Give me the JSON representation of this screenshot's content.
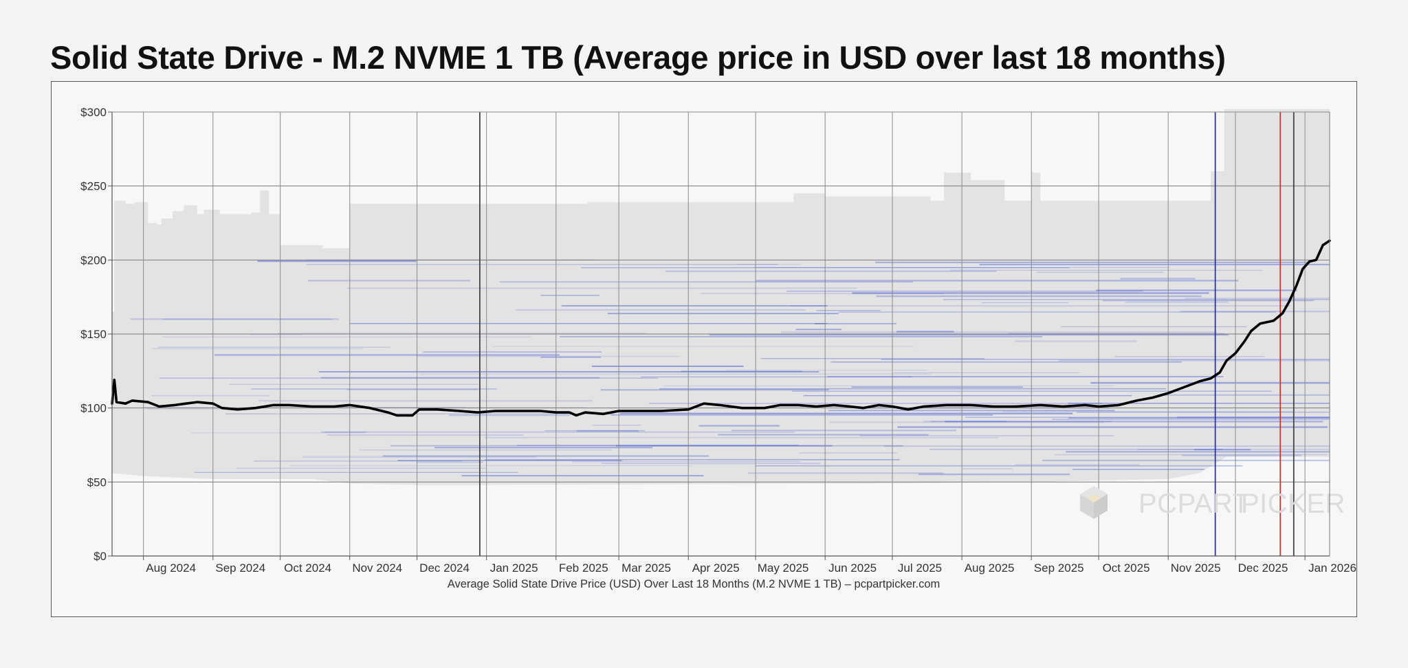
{
  "page": {
    "title": "Solid State Drive - M.2 NVME 1 TB (Average price in USD over last 18 months)"
  },
  "watermark": {
    "text_a": "PCPART",
    "text_b": "PICKER",
    "icon": "pcpartpicker-cube-icon"
  },
  "chart_data": {
    "type": "line",
    "title": "Solid State Drive - M.2 NVME 1 TB (Average price in USD over last 18 months)",
    "caption": "Average Solid State Drive Price (USD) Over Last 18 Months (M.2 NVME 1 TB) – pcpartpicker.com",
    "x_range": [
      "2024-07-18",
      "2026-01-12"
    ],
    "x_ticks": [
      {
        "label": "Aug 2024",
        "date": "2024-08-01"
      },
      {
        "label": "Sep 2024",
        "date": "2024-09-01"
      },
      {
        "label": "Oct 2024",
        "date": "2024-10-01"
      },
      {
        "label": "Nov 2024",
        "date": "2024-11-01"
      },
      {
        "label": "Dec 2024",
        "date": "2024-12-01"
      },
      {
        "label": "Jan 2025",
        "date": "2025-01-01"
      },
      {
        "label": "Feb 2025",
        "date": "2025-02-01"
      },
      {
        "label": "Mar 2025",
        "date": "2025-03-01"
      },
      {
        "label": "Apr 2025",
        "date": "2025-04-01"
      },
      {
        "label": "May 2025",
        "date": "2025-05-01"
      },
      {
        "label": "Jun 2025",
        "date": "2025-06-01"
      },
      {
        "label": "Jul 2025",
        "date": "2025-07-01"
      },
      {
        "label": "Aug 2025",
        "date": "2025-08-01"
      },
      {
        "label": "Sep 2025",
        "date": "2025-09-01"
      },
      {
        "label": "Oct 2025",
        "date": "2025-10-01"
      },
      {
        "label": "Nov 2025",
        "date": "2025-11-01"
      },
      {
        "label": "Dec 2025",
        "date": "2025-12-01"
      },
      {
        "label": "Jan 2026",
        "date": "2026-01-01"
      }
    ],
    "ylim": [
      0,
      300
    ],
    "y_ticks": [
      {
        "label": "$0",
        "value": 0
      },
      {
        "label": "$50",
        "value": 50
      },
      {
        "label": "$100",
        "value": 100
      },
      {
        "label": "$150",
        "value": 150
      },
      {
        "label": "$200",
        "value": 200
      },
      {
        "label": "$250",
        "value": 250
      },
      {
        "label": "$300",
        "value": 300
      }
    ],
    "grid": true,
    "series": [
      {
        "role": "average_price",
        "color": "#000000",
        "points": [
          [
            "2024-07-18",
            103
          ],
          [
            "2024-07-19",
            119
          ],
          [
            "2024-07-20",
            104
          ],
          [
            "2024-07-24",
            103
          ],
          [
            "2024-07-27",
            105
          ],
          [
            "2024-08-03",
            104
          ],
          [
            "2024-08-08",
            101
          ],
          [
            "2024-08-15",
            102
          ],
          [
            "2024-08-20",
            103
          ],
          [
            "2024-08-25",
            104
          ],
          [
            "2024-09-01",
            103
          ],
          [
            "2024-09-05",
            100
          ],
          [
            "2024-09-12",
            99
          ],
          [
            "2024-09-20",
            100
          ],
          [
            "2024-09-28",
            102
          ],
          [
            "2024-10-05",
            102
          ],
          [
            "2024-10-15",
            101
          ],
          [
            "2024-10-25",
            101
          ],
          [
            "2024-11-01",
            102
          ],
          [
            "2024-11-10",
            100
          ],
          [
            "2024-11-18",
            97
          ],
          [
            "2024-11-22",
            95
          ],
          [
            "2024-11-29",
            95
          ],
          [
            "2024-12-02",
            99
          ],
          [
            "2024-12-10",
            99
          ],
          [
            "2024-12-20",
            98
          ],
          [
            "2024-12-28",
            97
          ],
          [
            "2025-01-05",
            98
          ],
          [
            "2025-01-15",
            98
          ],
          [
            "2025-01-25",
            98
          ],
          [
            "2025-02-01",
            97
          ],
          [
            "2025-02-07",
            97
          ],
          [
            "2025-02-10",
            95
          ],
          [
            "2025-02-14",
            97
          ],
          [
            "2025-02-22",
            96
          ],
          [
            "2025-03-01",
            98
          ],
          [
            "2025-03-10",
            98
          ],
          [
            "2025-03-20",
            98
          ],
          [
            "2025-04-01",
            99
          ],
          [
            "2025-04-08",
            103
          ],
          [
            "2025-04-15",
            102
          ],
          [
            "2025-04-25",
            100
          ],
          [
            "2025-05-05",
            100
          ],
          [
            "2025-05-12",
            102
          ],
          [
            "2025-05-20",
            102
          ],
          [
            "2025-05-28",
            101
          ],
          [
            "2025-06-05",
            102
          ],
          [
            "2025-06-12",
            101
          ],
          [
            "2025-06-18",
            100
          ],
          [
            "2025-06-25",
            102
          ],
          [
            "2025-07-01",
            101
          ],
          [
            "2025-07-08",
            99
          ],
          [
            "2025-07-15",
            101
          ],
          [
            "2025-07-25",
            102
          ],
          [
            "2025-08-05",
            102
          ],
          [
            "2025-08-15",
            101
          ],
          [
            "2025-08-25",
            101
          ],
          [
            "2025-09-05",
            102
          ],
          [
            "2025-09-15",
            101
          ],
          [
            "2025-09-25",
            102
          ],
          [
            "2025-10-01",
            101
          ],
          [
            "2025-10-10",
            102
          ],
          [
            "2025-10-18",
            105
          ],
          [
            "2025-10-25",
            107
          ],
          [
            "2025-11-01",
            110
          ],
          [
            "2025-11-08",
            114
          ],
          [
            "2025-11-15",
            118
          ],
          [
            "2025-11-20",
            120
          ],
          [
            "2025-11-24",
            124
          ],
          [
            "2025-11-27",
            132
          ],
          [
            "2025-12-01",
            137
          ],
          [
            "2025-12-05",
            145
          ],
          [
            "2025-12-08",
            152
          ],
          [
            "2025-12-12",
            157
          ],
          [
            "2025-12-18",
            159
          ],
          [
            "2025-12-22",
            164
          ],
          [
            "2025-12-25",
            172
          ],
          [
            "2025-12-28",
            182
          ],
          [
            "2025-12-31",
            194
          ],
          [
            "2026-01-03",
            199
          ],
          [
            "2026-01-06",
            200
          ],
          [
            "2026-01-09",
            210
          ],
          [
            "2026-01-12",
            213
          ]
        ]
      }
    ],
    "price_range_band": {
      "color": "#e3e3e3",
      "upper": [
        [
          "2024-07-18",
          165
        ],
        [
          "2024-07-19",
          240
        ],
        [
          "2024-07-24",
          238
        ],
        [
          "2024-07-28",
          239
        ],
        [
          "2024-08-03",
          225
        ],
        [
          "2024-08-07",
          224
        ],
        [
          "2024-08-09",
          228
        ],
        [
          "2024-08-14",
          233
        ],
        [
          "2024-08-19",
          237
        ],
        [
          "2024-08-25",
          231
        ],
        [
          "2024-08-28",
          234
        ],
        [
          "2024-09-04",
          231
        ],
        [
          "2024-09-18",
          232
        ],
        [
          "2024-09-22",
          247
        ],
        [
          "2024-09-26",
          231
        ],
        [
          "2024-10-01",
          210
        ],
        [
          "2024-10-20",
          208
        ],
        [
          "2024-11-01",
          238
        ],
        [
          "2025-02-15",
          239
        ],
        [
          "2025-05-18",
          245
        ],
        [
          "2025-06-01",
          243
        ],
        [
          "2025-07-18",
          240
        ],
        [
          "2025-07-24",
          259
        ],
        [
          "2025-08-05",
          254
        ],
        [
          "2025-08-20",
          240
        ],
        [
          "2025-09-01",
          259
        ],
        [
          "2025-09-05",
          240
        ],
        [
          "2025-11-08",
          240
        ],
        [
          "2025-11-20",
          260
        ],
        [
          "2025-11-26",
          302
        ],
        [
          "2026-01-12",
          302
        ]
      ],
      "lower": [
        [
          "2024-07-18",
          56
        ],
        [
          "2024-08-01",
          54
        ],
        [
          "2024-09-01",
          52
        ],
        [
          "2024-10-15",
          52
        ],
        [
          "2024-11-01",
          49
        ],
        [
          "2024-12-01",
          48
        ],
        [
          "2025-01-01",
          48
        ],
        [
          "2025-07-01",
          49
        ],
        [
          "2025-09-01",
          50
        ],
        [
          "2025-11-01",
          52
        ],
        [
          "2025-11-15",
          56
        ],
        [
          "2025-11-27",
          67
        ],
        [
          "2026-01-12",
          67
        ]
      ]
    },
    "vertical_markers": [
      {
        "date": "2024-12-29",
        "color": "#444444"
      },
      {
        "date": "2025-11-22",
        "color": "#2b35a8"
      },
      {
        "date": "2025-12-21",
        "color": "#c43a2b"
      },
      {
        "date": "2025-12-27",
        "color": "#444444"
      }
    ]
  }
}
